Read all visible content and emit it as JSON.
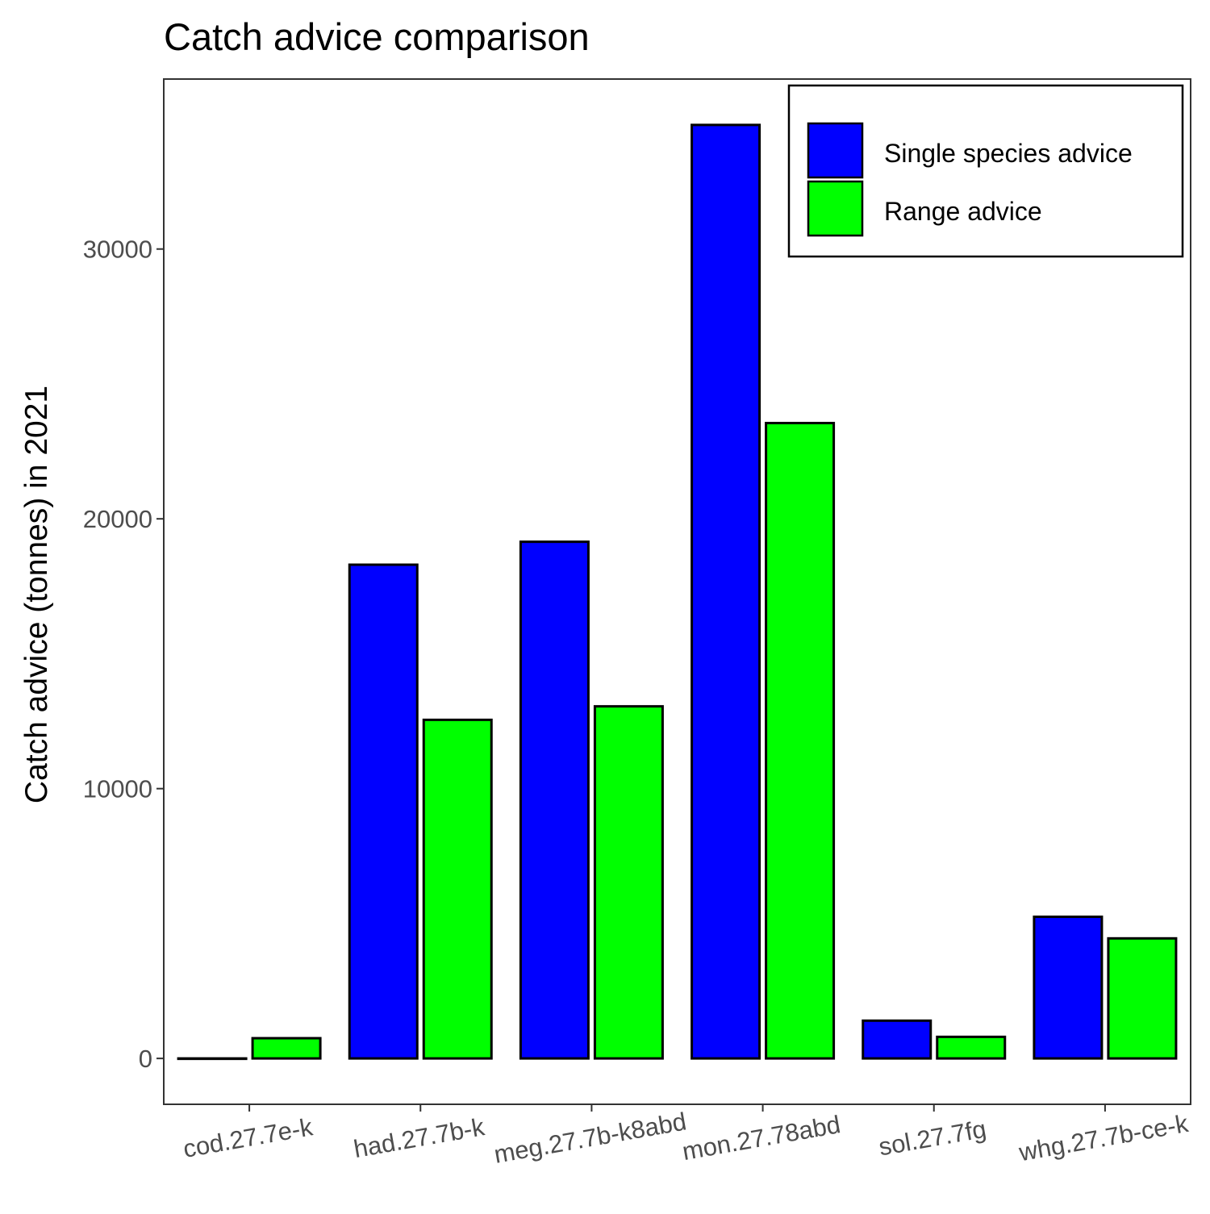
{
  "chart_data": {
    "type": "bar",
    "title": "Catch advice comparison",
    "xlabel": "",
    "ylabel": "Catch advice (tonnes) in 2021",
    "categories": [
      "cod.27.7e-k",
      "had.27.7b-k",
      "meg.27.7b-k8abd",
      "mon.27.78abd",
      "sol.27.7fg",
      "whg.27.7b-ce-k"
    ],
    "series": [
      {
        "name": "Single species advice",
        "color": "#0000ff",
        "values": [
          0,
          18300,
          19150,
          34600,
          1400,
          5250
        ]
      },
      {
        "name": "Range advice",
        "color": "#00ff00",
        "values": [
          750,
          12550,
          13050,
          23550,
          800,
          4450
        ]
      }
    ],
    "yticks": [
      0,
      10000,
      20000,
      30000
    ],
    "ytick_labels": [
      "0",
      "10000",
      "20000",
      "30000"
    ],
    "ylim": [
      -1700,
      36300
    ],
    "grid": false,
    "legend_position": "top-right"
  }
}
